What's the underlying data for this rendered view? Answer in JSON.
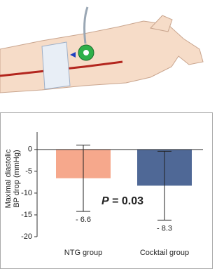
{
  "chart_data": {
    "type": "bar",
    "ylabel": [
      "Maximal diastolic",
      "BP drop (mmHg)"
    ],
    "categories": [
      "NTG group",
      "Cocktail  group"
    ],
    "values": [
      -6.6,
      -8.3
    ],
    "value_labels": [
      "- 6.6",
      "- 8.3"
    ],
    "errors": [
      7.6,
      7.9
    ],
    "colors": [
      "#f6a88c",
      "#4f6896"
    ],
    "annotation": [
      "P",
      " = 0.03"
    ],
    "ylim": [
      -20,
      4
    ],
    "yticks": [
      0,
      -5,
      -10,
      -15,
      -20
    ]
  }
}
